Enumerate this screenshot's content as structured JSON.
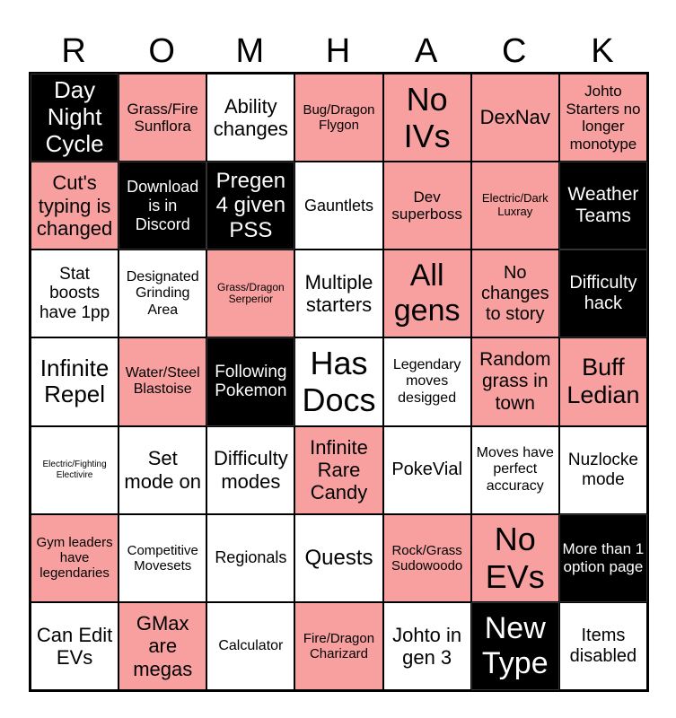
{
  "header": [
    "R",
    "O",
    "M",
    "H",
    "A",
    "C",
    "K"
  ],
  "colors": {
    "w": "#ffffff",
    "p": "#f8a0a0",
    "b": "#000000"
  },
  "cells": [
    {
      "text": "Day Night Cycle",
      "fill": "b"
    },
    {
      "text": "Grass/Fire Sunflora",
      "fill": "p"
    },
    {
      "text": "Ability changes",
      "fill": "w"
    },
    {
      "text": "Bug/Dragon Flygon",
      "fill": "p"
    },
    {
      "text": "No IVs",
      "fill": "p"
    },
    {
      "text": "DexNav",
      "fill": "p"
    },
    {
      "text": "Johto Starters no longer monotype",
      "fill": "p"
    },
    {
      "text": "Cut's typing is changed",
      "fill": "p"
    },
    {
      "text": "Download is in Discord",
      "fill": "b"
    },
    {
      "text": "Pregen 4 given PSS",
      "fill": "b"
    },
    {
      "text": "Gauntlets",
      "fill": "w"
    },
    {
      "text": "Dev superboss",
      "fill": "p"
    },
    {
      "text": "Electric/Dark Luxray",
      "fill": "p"
    },
    {
      "text": "Weather Teams",
      "fill": "b"
    },
    {
      "text": "Stat boosts have 1pp",
      "fill": "w"
    },
    {
      "text": "Designated Grinding Area",
      "fill": "w"
    },
    {
      "text": "Grass/Dragon Serperior",
      "fill": "p"
    },
    {
      "text": "Multiple starters",
      "fill": "w"
    },
    {
      "text": "All gens",
      "fill": "p"
    },
    {
      "text": "No changes to story",
      "fill": "p"
    },
    {
      "text": "Difficulty hack",
      "fill": "b"
    },
    {
      "text": "Infinite Repel",
      "fill": "w"
    },
    {
      "text": "Water/Steel Blastoise",
      "fill": "p"
    },
    {
      "text": "Following Pokemon",
      "fill": "b"
    },
    {
      "text": "Has Docs",
      "fill": "w"
    },
    {
      "text": "Legendary moves desigged",
      "fill": "w"
    },
    {
      "text": "Random grass in town",
      "fill": "p"
    },
    {
      "text": "Buff Ledian",
      "fill": "p"
    },
    {
      "text": "Electric/Fighting Electivire",
      "fill": "w"
    },
    {
      "text": "Set mode on",
      "fill": "w"
    },
    {
      "text": "Difficulty modes",
      "fill": "w"
    },
    {
      "text": "Infinite Rare Candy",
      "fill": "p"
    },
    {
      "text": "PokeVial",
      "fill": "w"
    },
    {
      "text": "Moves have perfect accuracy",
      "fill": "w"
    },
    {
      "text": "Nuzlocke mode",
      "fill": "w"
    },
    {
      "text": "Gym leaders have legendaries",
      "fill": "p"
    },
    {
      "text": "Competitive Movesets",
      "fill": "w"
    },
    {
      "text": "Regionals",
      "fill": "w"
    },
    {
      "text": "Quests",
      "fill": "w"
    },
    {
      "text": "Rock/Grass Sudowoodo",
      "fill": "p"
    },
    {
      "text": "No EVs",
      "fill": "p"
    },
    {
      "text": "More than 1 option page",
      "fill": "b"
    },
    {
      "text": "Can Edit EVs",
      "fill": "w"
    },
    {
      "text": "GMax are megas",
      "fill": "p"
    },
    {
      "text": "Calculator",
      "fill": "w"
    },
    {
      "text": "Fire/Dragon Charizard",
      "fill": "p"
    },
    {
      "text": "Johto in gen 3",
      "fill": "w"
    },
    {
      "text": "New Type",
      "fill": "b"
    },
    {
      "text": "Items disabled",
      "fill": "w"
    }
  ]
}
